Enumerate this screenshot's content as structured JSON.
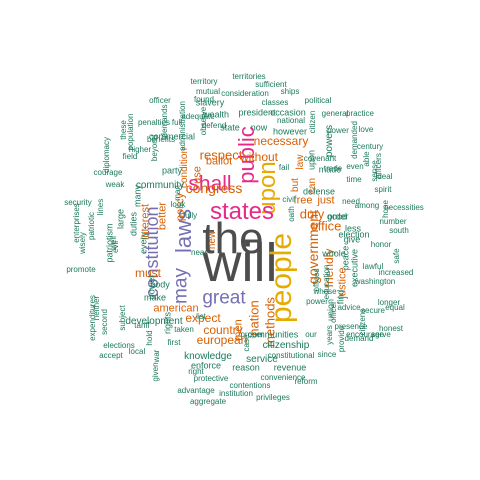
{
  "palette": {
    "gray": "#4d4d4d",
    "orange": "#d95f02",
    "purple": "#7570b3",
    "magenta": "#e7298a",
    "green": "#1b9e77",
    "teal": "#1b7a5e",
    "gold": "#e6ab02"
  },
  "words": [
    {
      "text": "will",
      "color": "gray",
      "weight": 1.0
    },
    {
      "text": "the",
      "color": "gray",
      "weight": 0.95
    },
    {
      "text": "people",
      "color": "gold",
      "weight": 0.75
    },
    {
      "text": "upon",
      "color": "gold",
      "weight": 0.6
    },
    {
      "text": "states",
      "color": "magenta",
      "weight": 0.55
    },
    {
      "text": "public",
      "color": "magenta",
      "weight": 0.5
    },
    {
      "text": "shall",
      "color": "magenta",
      "weight": 0.5
    },
    {
      "text": "laws",
      "color": "purple",
      "weight": 0.45
    },
    {
      "text": "may",
      "color": "purple",
      "weight": 0.42
    },
    {
      "text": "constitution",
      "color": "purple",
      "weight": 0.38
    },
    {
      "text": "great",
      "color": "purple",
      "weight": 0.38
    },
    {
      "text": "government",
      "color": "orange",
      "weight": 0.35
    },
    {
      "text": "congress",
      "color": "orange",
      "weight": 0.33
    },
    {
      "text": "respect",
      "color": "orange",
      "weight": 0.3
    },
    {
      "text": "nation",
      "color": "orange",
      "weight": 0.3
    },
    {
      "text": "duty",
      "color": "orange",
      "weight": 0.3
    },
    {
      "text": "office",
      "color": "orange",
      "weight": 0.28
    },
    {
      "text": "methods",
      "color": "orange",
      "weight": 0.28
    },
    {
      "text": "friendly",
      "color": "orange",
      "weight": 0.28
    },
    {
      "text": "necessary",
      "color": "orange",
      "weight": 0.28
    },
    {
      "text": "without",
      "color": "orange",
      "weight": 0.28
    },
    {
      "text": "must",
      "color": "orange",
      "weight": 0.28
    },
    {
      "text": "expect",
      "color": "orange",
      "weight": 0.28
    },
    {
      "text": "country",
      "color": "orange",
      "weight": 0.28
    },
    {
      "text": "european",
      "color": "orange",
      "weight": 0.28
    },
    {
      "text": "american",
      "color": "orange",
      "weight": 0.26
    },
    {
      "text": "ballot",
      "color": "orange",
      "weight": 0.26
    },
    {
      "text": "free",
      "color": "orange",
      "weight": 0.26
    },
    {
      "text": "just",
      "color": "orange",
      "weight": 0.26
    },
    {
      "text": "better",
      "color": "orange",
      "weight": 0.26
    },
    {
      "text": "policy",
      "color": "orange",
      "weight": 0.26
    },
    {
      "text": "interest",
      "color": "orange",
      "weight": 0.26
    },
    {
      "text": "justice",
      "color": "orange",
      "weight": 0.24
    },
    {
      "text": "men",
      "color": "orange",
      "weight": 0.24
    },
    {
      "text": "use",
      "color": "orange",
      "weight": 0.24
    },
    {
      "text": "new",
      "color": "orange",
      "weight": 0.24
    },
    {
      "text": "condition",
      "color": "orange",
      "weight": 0.24
    },
    {
      "text": "but",
      "color": "orange",
      "weight": 0.24
    },
    {
      "text": "law",
      "color": "orange",
      "weight": 0.24
    },
    {
      "text": "can",
      "color": "orange",
      "weight": 0.24
    },
    {
      "text": "citizenship",
      "color": "teal",
      "weight": 0.2
    },
    {
      "text": "communities",
      "color": "teal",
      "weight": 0.2
    },
    {
      "text": "knowledge",
      "color": "teal",
      "weight": 0.2
    },
    {
      "text": "service",
      "color": "teal",
      "weight": 0.2
    },
    {
      "text": "development",
      "color": "teal",
      "weight": 0.2
    },
    {
      "text": "community",
      "color": "teal",
      "weight": 0.2
    },
    {
      "text": "commercial",
      "color": "teal",
      "weight": 0.2
    },
    {
      "text": "election",
      "color": "teal",
      "weight": 0.2
    },
    {
      "text": "defense",
      "color": "teal",
      "weight": 0.2
    },
    {
      "text": "powers",
      "color": "teal",
      "weight": 0.2
    },
    {
      "text": "executive",
      "color": "teal",
      "weight": 0.2
    },
    {
      "text": "whole",
      "color": "teal",
      "weight": 0.2
    },
    {
      "text": "peace",
      "color": "teal",
      "weight": 0.2
    },
    {
      "text": "order",
      "color": "teal",
      "weight": 0.2
    },
    {
      "text": "good",
      "color": "teal",
      "weight": 0.2
    },
    {
      "text": "made",
      "color": "teal",
      "weight": 0.2
    },
    {
      "text": "give",
      "color": "teal",
      "weight": 0.2
    },
    {
      "text": "less",
      "color": "teal",
      "weight": 0.2
    },
    {
      "text": "find",
      "color": "teal",
      "weight": 0.2
    },
    {
      "text": "upon",
      "color": "teal",
      "weight": 0.2
    },
    {
      "text": "union",
      "color": "teal",
      "weight": 0.2
    },
    {
      "text": "enforce",
      "color": "teal",
      "weight": 0.2
    },
    {
      "text": "reason",
      "color": "teal",
      "weight": 0.2
    },
    {
      "text": "revenue",
      "color": "teal",
      "weight": 0.2
    },
    {
      "text": "rights",
      "color": "teal",
      "weight": 0.2
    },
    {
      "text": "make",
      "color": "teal",
      "weight": 0.2
    },
    {
      "text": "power",
      "color": "teal",
      "weight": 0.2
    },
    {
      "text": "body",
      "color": "teal",
      "weight": 0.2
    },
    {
      "text": "party",
      "color": "teal",
      "weight": 0.2
    },
    {
      "text": "every",
      "color": "teal",
      "weight": 0.2
    },
    {
      "text": "duties",
      "color": "teal",
      "weight": 0.2
    },
    {
      "text": "many",
      "color": "teal",
      "weight": 0.2
    },
    {
      "text": "large",
      "color": "teal",
      "weight": 0.2
    },
    {
      "text": "patriotism",
      "color": "teal",
      "weight": 0.2
    },
    {
      "text": "state",
      "color": "teal",
      "weight": 0.2
    },
    {
      "text": "now",
      "color": "teal",
      "weight": 0.2
    },
    {
      "text": "however",
      "color": "teal",
      "weight": 0.2
    },
    {
      "text": "wealth",
      "color": "teal",
      "weight": 0.2
    },
    {
      "text": "president",
      "color": "teal",
      "weight": 0.2
    },
    {
      "text": "occasion",
      "color": "teal",
      "weight": 0.2
    },
    {
      "text": "slavery",
      "color": "teal",
      "weight": 0.2
    },
    {
      "text": "classes",
      "color": "teal",
      "weight": 0.18
    },
    {
      "text": "national",
      "color": "teal",
      "weight": 0.18
    },
    {
      "text": "general",
      "color": "teal",
      "weight": 0.18
    },
    {
      "text": "practice",
      "color": "teal",
      "weight": 0.18
    },
    {
      "text": "political",
      "color": "teal",
      "weight": 0.18
    },
    {
      "text": "territory",
      "color": "teal",
      "weight": 0.18
    },
    {
      "text": "territories",
      "color": "teal",
      "weight": 0.16
    },
    {
      "text": "sufficient",
      "color": "teal",
      "weight": 0.16
    },
    {
      "text": "consideration",
      "color": "teal",
      "weight": 0.16
    },
    {
      "text": "mutual",
      "color": "teal",
      "weight": 0.16
    },
    {
      "text": "ships",
      "color": "teal",
      "weight": 0.16
    },
    {
      "text": "found",
      "color": "teal",
      "weight": 0.16
    },
    {
      "text": "defend",
      "color": "teal",
      "weight": 0.16
    },
    {
      "text": "officer",
      "color": "teal",
      "weight": 0.16
    },
    {
      "text": "benefits",
      "color": "teal",
      "weight": 0.16
    },
    {
      "text": "penalties",
      "color": "teal",
      "weight": 0.16
    },
    {
      "text": "demands",
      "color": "teal",
      "weight": 0.16
    },
    {
      "text": "higher",
      "color": "teal",
      "weight": 0.16
    },
    {
      "text": "field",
      "color": "teal",
      "weight": 0.16
    },
    {
      "text": "beyond",
      "color": "teal",
      "weight": 0.16
    },
    {
      "text": "courage",
      "color": "teal",
      "weight": 0.16
    },
    {
      "text": "diplomacy",
      "color": "teal",
      "weight": 0.16
    },
    {
      "text": "weak",
      "color": "teal",
      "weight": 0.16
    },
    {
      "text": "these",
      "color": "teal",
      "weight": 0.16
    },
    {
      "text": "population",
      "color": "teal",
      "weight": 0.16
    },
    {
      "text": "security",
      "color": "teal",
      "weight": 0.16
    },
    {
      "text": "lines",
      "color": "teal",
      "weight": 0.16
    },
    {
      "text": "patriotic",
      "color": "teal",
      "weight": 0.16
    },
    {
      "text": "enterprises",
      "color": "teal",
      "weight": 0.16
    },
    {
      "text": "wisely",
      "color": "teal",
      "weight": 0.16
    },
    {
      "text": "promote",
      "color": "teal",
      "weight": 0.16
    },
    {
      "text": "neither",
      "color": "teal",
      "weight": 0.16
    },
    {
      "text": "expenditures",
      "color": "teal",
      "weight": 0.16
    },
    {
      "text": "second",
      "color": "teal",
      "weight": 0.16
    },
    {
      "text": "subject",
      "color": "teal",
      "weight": 0.16
    },
    {
      "text": "elections",
      "color": "teal",
      "weight": 0.16
    },
    {
      "text": "tariff",
      "color": "teal",
      "weight": 0.16
    },
    {
      "text": "accept",
      "color": "teal",
      "weight": 0.16
    },
    {
      "text": "local",
      "color": "teal",
      "weight": 0.16
    },
    {
      "text": "hold",
      "color": "teal",
      "weight": 0.16
    },
    {
      "text": "taken",
      "color": "teal",
      "weight": 0.16
    },
    {
      "text": "first",
      "color": "teal",
      "weight": 0.16
    },
    {
      "text": "war",
      "color": "teal",
      "weight": 0.16
    },
    {
      "text": "given",
      "color": "teal",
      "weight": 0.16
    },
    {
      "text": "right",
      "color": "teal",
      "weight": 0.16
    },
    {
      "text": "protective",
      "color": "teal",
      "weight": 0.16
    },
    {
      "text": "advantage",
      "color": "teal",
      "weight": 0.16
    },
    {
      "text": "aggregate",
      "color": "teal",
      "weight": 0.16
    },
    {
      "text": "institution",
      "color": "teal",
      "weight": 0.16
    },
    {
      "text": "contentions",
      "color": "teal",
      "weight": 0.16
    },
    {
      "text": "privileges",
      "color": "teal",
      "weight": 0.16
    },
    {
      "text": "convenience",
      "color": "teal",
      "weight": 0.16
    },
    {
      "text": "reform",
      "color": "teal",
      "weight": 0.16
    },
    {
      "text": "constitutional",
      "color": "teal",
      "weight": 0.16
    },
    {
      "text": "proper",
      "color": "teal",
      "weight": 0.16
    },
    {
      "text": "case",
      "color": "teal",
      "weight": 0.16
    },
    {
      "text": "list",
      "color": "teal",
      "weight": 0.16
    },
    {
      "text": "near",
      "color": "teal",
      "weight": 0.16
    },
    {
      "text": "fully",
      "color": "teal",
      "weight": 0.16
    },
    {
      "text": "fail",
      "color": "teal",
      "weight": 0.16
    },
    {
      "text": "oath",
      "color": "teal",
      "weight": 0.16
    },
    {
      "text": "civil",
      "color": "teal",
      "weight": 0.16
    },
    {
      "text": "look",
      "color": "teal",
      "weight": 0.16
    },
    {
      "text": "man",
      "color": "teal",
      "weight": 0.16
    },
    {
      "text": "full",
      "color": "teal",
      "weight": 0.16
    },
    {
      "text": "evil",
      "color": "teal",
      "weight": 0.16
    },
    {
      "text": "well",
      "color": "teal",
      "weight": 0.16
    },
    {
      "text": "administration",
      "color": "teal",
      "weight": 0.16
    },
    {
      "text": "observe",
      "color": "teal",
      "weight": 0.16
    },
    {
      "text": "adequate",
      "color": "teal",
      "weight": 0.14
    },
    {
      "text": "citizen",
      "color": "teal",
      "weight": 0.14
    },
    {
      "text": "power",
      "color": "teal",
      "weight": 0.14
    },
    {
      "text": "love",
      "color": "teal",
      "weight": 0.14
    },
    {
      "text": "century",
      "color": "teal",
      "weight": 0.14
    },
    {
      "text": "demanded",
      "color": "teal",
      "weight": 0.14
    },
    {
      "text": "covenant",
      "color": "teal",
      "weight": 0.14
    },
    {
      "text": "trade",
      "color": "teal",
      "weight": 0.14
    },
    {
      "text": "able",
      "color": "teal",
      "weight": 0.14
    },
    {
      "text": "even",
      "color": "teal",
      "weight": 0.14
    },
    {
      "text": "officers",
      "color": "teal",
      "weight": 0.14
    },
    {
      "text": "spirit",
      "color": "teal",
      "weight": 0.14
    },
    {
      "text": "necessities",
      "color": "teal",
      "weight": 0.14
    },
    {
      "text": "number",
      "color": "teal",
      "weight": 0.14
    },
    {
      "text": "south",
      "color": "teal",
      "weight": 0.14
    },
    {
      "text": "need",
      "color": "teal",
      "weight": 0.14
    },
    {
      "text": "time",
      "color": "teal",
      "weight": 0.14
    },
    {
      "text": "among",
      "color": "teal",
      "weight": 0.14
    },
    {
      "text": "sense",
      "color": "teal",
      "weight": 0.14
    },
    {
      "text": "ideal",
      "color": "teal",
      "weight": 0.14
    },
    {
      "text": "hope",
      "color": "teal",
      "weight": 0.14
    },
    {
      "text": "honor",
      "color": "teal",
      "weight": 0.14
    },
    {
      "text": "increased",
      "color": "teal",
      "weight": 0.14
    },
    {
      "text": "safe",
      "color": "teal",
      "weight": 0.14
    },
    {
      "text": "lawful",
      "color": "teal",
      "weight": 0.14
    },
    {
      "text": "washington",
      "color": "teal",
      "weight": 0.14
    },
    {
      "text": "longer",
      "color": "teal",
      "weight": 0.14
    },
    {
      "text": "equal",
      "color": "teal",
      "weight": 0.14
    },
    {
      "text": "honest",
      "color": "teal",
      "weight": 0.14
    },
    {
      "text": "serve",
      "color": "teal",
      "weight": 0.14
    },
    {
      "text": "secure",
      "color": "teal",
      "weight": 0.14
    },
    {
      "text": "citizens",
      "color": "teal",
      "weight": 0.14
    },
    {
      "text": "encourage",
      "color": "teal",
      "weight": 0.14
    },
    {
      "text": "demand",
      "color": "teal",
      "weight": 0.14
    },
    {
      "text": "presence",
      "color": "teal",
      "weight": 0.14
    },
    {
      "text": "provide",
      "color": "teal",
      "weight": 0.14
    },
    {
      "text": "years",
      "color": "teal",
      "weight": 0.14
    },
    {
      "text": "advice",
      "color": "teal",
      "weight": 0.14
    },
    {
      "text": "education",
      "color": "teal",
      "weight": 0.14
    },
    {
      "text": "offices",
      "color": "teal",
      "weight": 0.14
    },
    {
      "text": "officer",
      "color": "teal",
      "weight": 0.14
    },
    {
      "text": "power",
      "color": "teal",
      "weight": 0.14
    },
    {
      "text": "our",
      "color": "teal",
      "weight": 0.14
    },
    {
      "text": "since",
      "color": "teal",
      "weight": 0.14
    },
    {
      "text": "whose",
      "color": "teal",
      "weight": 0.14
    }
  ]
}
